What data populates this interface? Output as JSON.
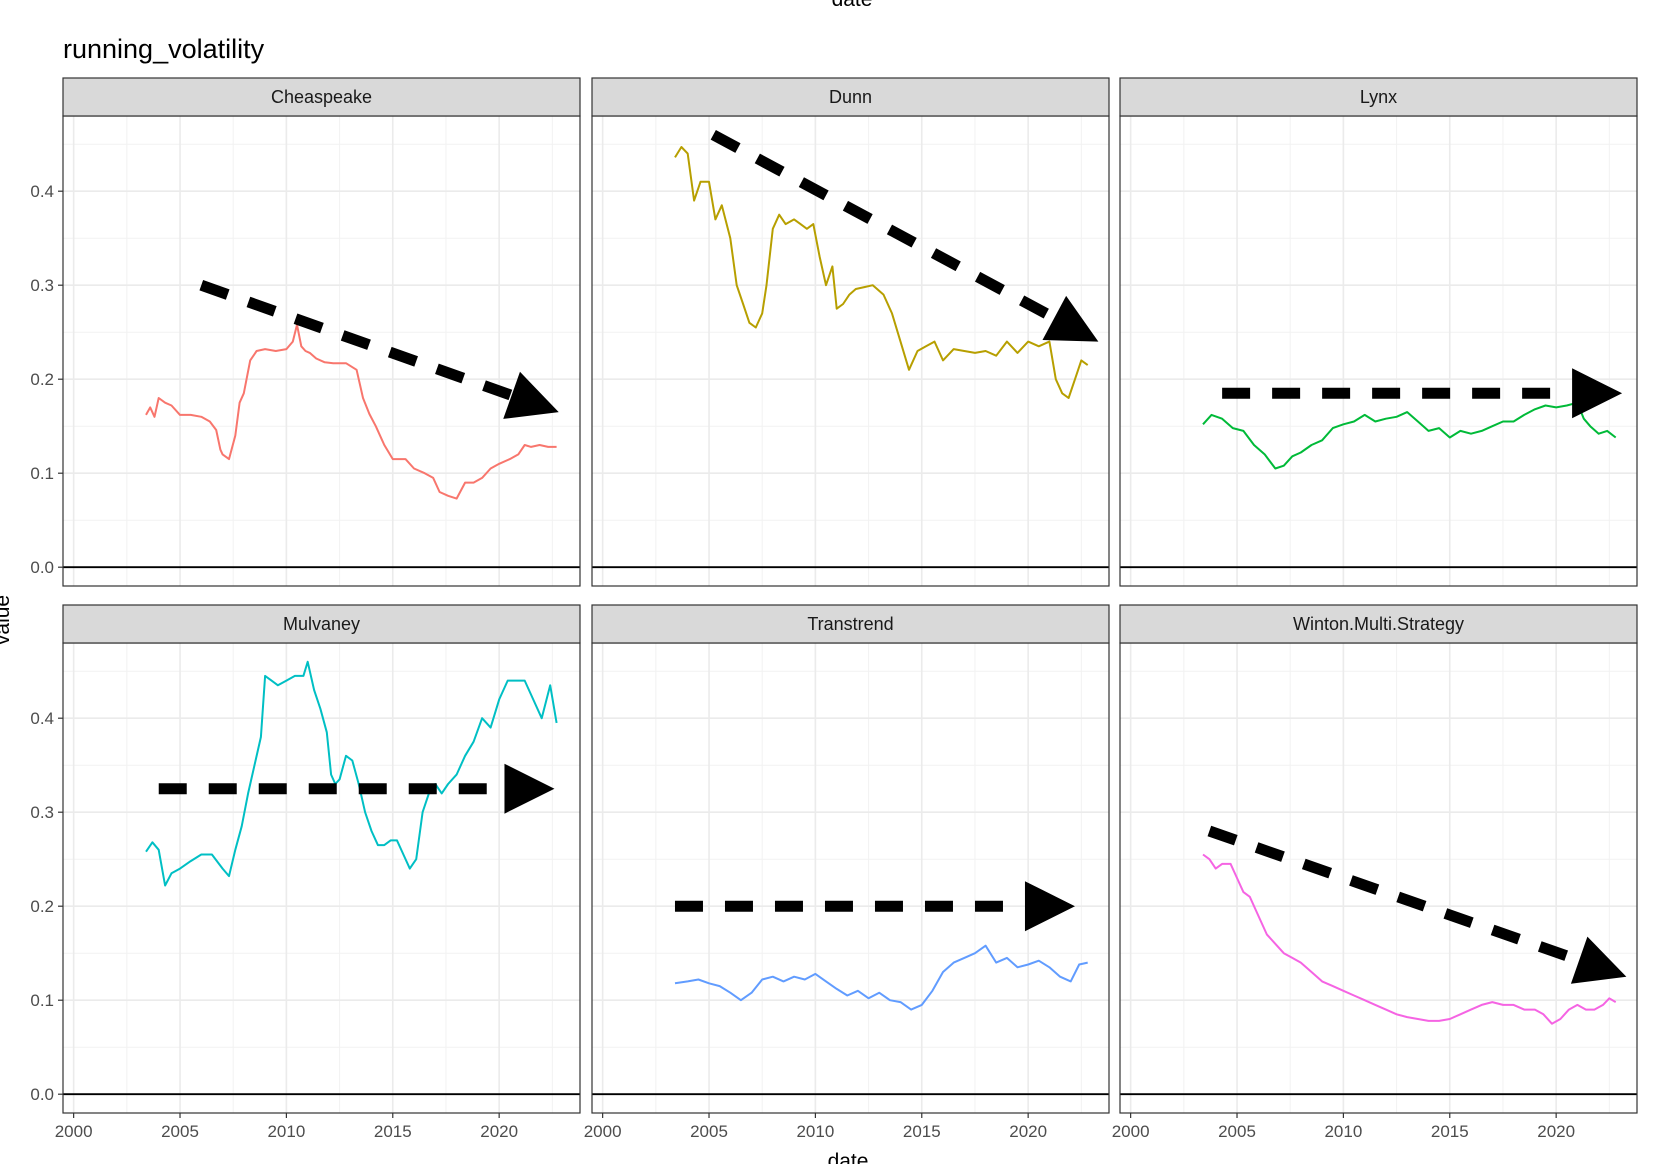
{
  "chart_data": {
    "type": "line",
    "title": "running_volatility",
    "top_label": "date",
    "xlabel": "date",
    "ylabel": "value",
    "xlim": [
      1999.5,
      2023.8
    ],
    "ylim": [
      -0.02,
      0.48
    ],
    "x_ticks": [
      2000,
      2005,
      2010,
      2015,
      2020
    ],
    "x_tick_labels": [
      "2000",
      "2005",
      "2010",
      "2015",
      "2020"
    ],
    "y_ticks": [
      0.0,
      0.1,
      0.2,
      0.3,
      0.4
    ],
    "y_tick_labels": [
      "0.0",
      "0.1",
      "0.2",
      "0.3",
      "0.4"
    ],
    "grid": true,
    "legend": "none",
    "facets": [
      {
        "name": "Cheaspeake",
        "color": "#F8766D",
        "x": [
          2003.4,
          2003.6,
          2003.8,
          2004.0,
          2004.3,
          2004.6,
          2005.0,
          2005.5,
          2006.0,
          2006.4,
          2006.7,
          2006.9,
          2007.0,
          2007.3,
          2007.6,
          2007.8,
          2008.0,
          2008.3,
          2008.6,
          2009.0,
          2009.5,
          2010.0,
          2010.3,
          2010.5,
          2010.7,
          2010.9,
          2011.1,
          2011.4,
          2011.8,
          2012.2,
          2012.8,
          2013.3,
          2013.6,
          2013.9,
          2014.2,
          2014.6,
          2015.0,
          2015.6,
          2016.0,
          2016.5,
          2016.9,
          2017.2,
          2017.6,
          2018.0,
          2018.4,
          2018.8,
          2019.2,
          2019.6,
          2020.0,
          2020.5,
          2020.9,
          2021.2,
          2021.5,
          2021.9,
          2022.3,
          2022.7
        ],
        "values": [
          0.162,
          0.17,
          0.16,
          0.18,
          0.175,
          0.172,
          0.162,
          0.162,
          0.16,
          0.155,
          0.146,
          0.125,
          0.12,
          0.115,
          0.14,
          0.175,
          0.185,
          0.22,
          0.23,
          0.232,
          0.23,
          0.232,
          0.24,
          0.258,
          0.235,
          0.23,
          0.228,
          0.222,
          0.218,
          0.217,
          0.217,
          0.21,
          0.18,
          0.163,
          0.15,
          0.13,
          0.115,
          0.115,
          0.105,
          0.1,
          0.095,
          0.08,
          0.076,
          0.073,
          0.09,
          0.09,
          0.095,
          0.105,
          0.11,
          0.115,
          0.12,
          0.13,
          0.128,
          0.13,
          0.128,
          0.128
        ]
      },
      {
        "name": "Dunn",
        "color": "#B79F00",
        "x": [
          2003.4,
          2003.7,
          2004.0,
          2004.3,
          2004.6,
          2005.0,
          2005.3,
          2005.6,
          2006.0,
          2006.3,
          2006.6,
          2006.9,
          2007.2,
          2007.5,
          2007.7,
          2008.0,
          2008.3,
          2008.6,
          2009.0,
          2009.3,
          2009.6,
          2009.9,
          2010.2,
          2010.5,
          2010.8,
          2011.0,
          2011.3,
          2011.6,
          2011.9,
          2012.3,
          2012.7,
          2013.2,
          2013.6,
          2014.0,
          2014.4,
          2014.8,
          2015.2,
          2015.6,
          2016.0,
          2016.5,
          2017.0,
          2017.5,
          2018.0,
          2018.5,
          2019.0,
          2019.5,
          2020.0,
          2020.5,
          2021.0,
          2021.3,
          2021.6,
          2021.9,
          2022.2,
          2022.5,
          2022.8
        ],
        "values": [
          0.436,
          0.447,
          0.44,
          0.39,
          0.41,
          0.41,
          0.37,
          0.385,
          0.35,
          0.3,
          0.28,
          0.26,
          0.255,
          0.27,
          0.3,
          0.36,
          0.375,
          0.365,
          0.37,
          0.365,
          0.36,
          0.365,
          0.33,
          0.3,
          0.32,
          0.275,
          0.28,
          0.29,
          0.296,
          0.298,
          0.3,
          0.29,
          0.27,
          0.24,
          0.21,
          0.23,
          0.235,
          0.24,
          0.22,
          0.232,
          0.23,
          0.228,
          0.23,
          0.225,
          0.24,
          0.228,
          0.24,
          0.235,
          0.24,
          0.2,
          0.185,
          0.18,
          0.2,
          0.22,
          0.215
        ]
      },
      {
        "name": "Lynx",
        "color": "#00BA38",
        "x": [
          2003.4,
          2003.8,
          2004.3,
          2004.8,
          2005.3,
          2005.8,
          2006.3,
          2006.8,
          2007.2,
          2007.6,
          2008.0,
          2008.5,
          2009.0,
          2009.5,
          2010.0,
          2010.5,
          2011.0,
          2011.5,
          2012.0,
          2012.5,
          2013.0,
          2013.5,
          2014.0,
          2014.5,
          2015.0,
          2015.5,
          2016.0,
          2016.5,
          2017.0,
          2017.5,
          2018.0,
          2018.5,
          2019.0,
          2019.5,
          2020.0,
          2020.5,
          2021.0,
          2021.3,
          2021.6,
          2022.0,
          2022.4,
          2022.8
        ],
        "values": [
          0.152,
          0.162,
          0.158,
          0.148,
          0.145,
          0.13,
          0.12,
          0.105,
          0.108,
          0.118,
          0.122,
          0.13,
          0.135,
          0.148,
          0.152,
          0.155,
          0.162,
          0.155,
          0.158,
          0.16,
          0.165,
          0.155,
          0.145,
          0.148,
          0.138,
          0.145,
          0.142,
          0.145,
          0.15,
          0.155,
          0.155,
          0.162,
          0.168,
          0.172,
          0.17,
          0.172,
          0.175,
          0.158,
          0.15,
          0.142,
          0.145,
          0.138
        ]
      },
      {
        "name": "Mulvaney",
        "color": "#00BFC4",
        "x": [
          2003.4,
          2003.7,
          2004.0,
          2004.3,
          2004.6,
          2005.0,
          2005.5,
          2006.0,
          2006.5,
          2007.0,
          2007.3,
          2007.6,
          2007.9,
          2008.2,
          2008.5,
          2008.8,
          2009.0,
          2009.3,
          2009.6,
          2010.0,
          2010.4,
          2010.8,
          2011.0,
          2011.3,
          2011.6,
          2011.9,
          2012.1,
          2012.3,
          2012.5,
          2012.8,
          2013.1,
          2013.4,
          2013.7,
          2014.0,
          2014.3,
          2014.6,
          2014.9,
          2015.2,
          2015.5,
          2015.8,
          2016.1,
          2016.4,
          2016.7,
          2017.0,
          2017.3,
          2017.6,
          2018.0,
          2018.4,
          2018.8,
          2019.2,
          2019.6,
          2020.0,
          2020.4,
          2020.8,
          2021.2,
          2021.6,
          2022.0,
          2022.4,
          2022.7
        ],
        "values": [
          0.258,
          0.268,
          0.26,
          0.222,
          0.235,
          0.24,
          0.248,
          0.255,
          0.255,
          0.24,
          0.232,
          0.26,
          0.285,
          0.32,
          0.35,
          0.38,
          0.445,
          0.44,
          0.435,
          0.44,
          0.445,
          0.445,
          0.46,
          0.43,
          0.41,
          0.385,
          0.34,
          0.33,
          0.335,
          0.36,
          0.355,
          0.33,
          0.3,
          0.28,
          0.265,
          0.265,
          0.27,
          0.27,
          0.255,
          0.24,
          0.25,
          0.3,
          0.32,
          0.33,
          0.32,
          0.33,
          0.34,
          0.36,
          0.375,
          0.4,
          0.39,
          0.42,
          0.44,
          0.44,
          0.44,
          0.42,
          0.4,
          0.435,
          0.395
        ]
      },
      {
        "name": "Transtrend",
        "color": "#619CFF",
        "x": [
          2003.4,
          2004.0,
          2004.5,
          2005.0,
          2005.5,
          2006.0,
          2006.5,
          2007.0,
          2007.5,
          2008.0,
          2008.5,
          2009.0,
          2009.5,
          2010.0,
          2010.5,
          2011.0,
          2011.5,
          2012.0,
          2012.5,
          2013.0,
          2013.5,
          2014.0,
          2014.5,
          2015.0,
          2015.5,
          2016.0,
          2016.5,
          2017.0,
          2017.5,
          2018.0,
          2018.5,
          2019.0,
          2019.5,
          2020.0,
          2020.5,
          2021.0,
          2021.5,
          2022.0,
          2022.4,
          2022.8
        ],
        "values": [
          0.118,
          0.12,
          0.122,
          0.118,
          0.115,
          0.108,
          0.1,
          0.108,
          0.122,
          0.125,
          0.12,
          0.125,
          0.122,
          0.128,
          0.12,
          0.112,
          0.105,
          0.11,
          0.102,
          0.108,
          0.1,
          0.098,
          0.09,
          0.095,
          0.11,
          0.13,
          0.14,
          0.145,
          0.15,
          0.158,
          0.14,
          0.145,
          0.135,
          0.138,
          0.142,
          0.135,
          0.125,
          0.12,
          0.138,
          0.14
        ]
      },
      {
        "name": "Winton.Multi.Strategy",
        "color": "#F564E3",
        "x": [
          2003.4,
          2003.7,
          2004.0,
          2004.3,
          2004.7,
          2005.0,
          2005.3,
          2005.6,
          2006.0,
          2006.4,
          2006.8,
          2007.2,
          2007.6,
          2008.0,
          2008.5,
          2009.0,
          2009.5,
          2010.0,
          2010.5,
          2011.0,
          2011.5,
          2012.0,
          2012.5,
          2013.0,
          2013.5,
          2014.0,
          2014.5,
          2015.0,
          2015.5,
          2016.0,
          2016.5,
          2017.0,
          2017.5,
          2018.0,
          2018.5,
          2019.0,
          2019.4,
          2019.8,
          2020.2,
          2020.6,
          2021.0,
          2021.4,
          2021.8,
          2022.2,
          2022.5,
          2022.8
        ],
        "values": [
          0.255,
          0.25,
          0.24,
          0.245,
          0.245,
          0.23,
          0.215,
          0.21,
          0.19,
          0.17,
          0.16,
          0.15,
          0.145,
          0.14,
          0.13,
          0.12,
          0.115,
          0.11,
          0.105,
          0.1,
          0.095,
          0.09,
          0.085,
          0.082,
          0.08,
          0.078,
          0.078,
          0.08,
          0.085,
          0.09,
          0.095,
          0.098,
          0.095,
          0.095,
          0.09,
          0.09,
          0.085,
          0.075,
          0.08,
          0.09,
          0.095,
          0.09,
          0.09,
          0.095,
          0.102,
          0.098
        ]
      }
    ],
    "annotations": [
      {
        "facet": "Cheaspeake",
        "type": "dashed-arrow",
        "x": [
          2006.0,
          2022.8
        ],
        "y": [
          0.3,
          0.165
        ]
      },
      {
        "facet": "Dunn",
        "type": "dashed-arrow",
        "x": [
          2005.2,
          2023.3
        ],
        "y": [
          0.46,
          0.24
        ]
      },
      {
        "facet": "Lynx",
        "type": "dashed-arrow",
        "x": [
          2004.3,
          2023.1
        ],
        "y": [
          0.185,
          0.185
        ]
      },
      {
        "facet": "Mulvaney",
        "type": "dashed-arrow",
        "x": [
          2004.0,
          2022.6
        ],
        "y": [
          0.325,
          0.325
        ]
      },
      {
        "facet": "Transtrend",
        "type": "dashed-arrow",
        "x": [
          2003.4,
          2022.2
        ],
        "y": [
          0.2,
          0.2
        ]
      },
      {
        "facet": "Winton.Multi.Strategy",
        "type": "dashed-arrow",
        "x": [
          2003.7,
          2023.3
        ],
        "y": [
          0.28,
          0.125
        ]
      }
    ]
  }
}
